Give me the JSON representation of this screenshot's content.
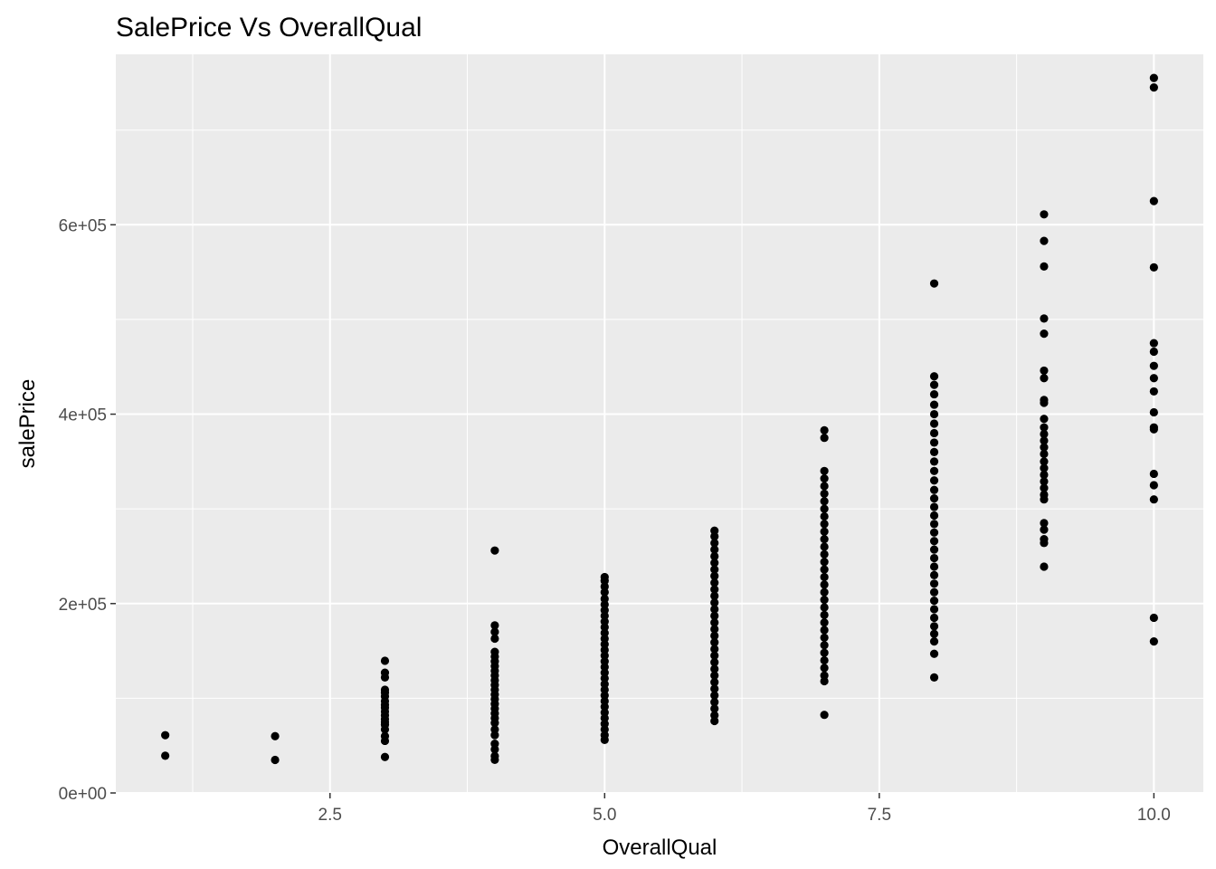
{
  "chart_data": {
    "type": "scatter",
    "title": "SalePrice Vs OverallQual",
    "xlabel": "OverallQual",
    "ylabel": "salePrice",
    "xlim": [
      0.55,
      10.45
    ],
    "ylim": [
      0,
      780000
    ],
    "x_ticks": [
      {
        "value": 2.5,
        "label": "2.5"
      },
      {
        "value": 5.0,
        "label": "5.0"
      },
      {
        "value": 7.5,
        "label": "7.5"
      },
      {
        "value": 10.0,
        "label": "10.0"
      }
    ],
    "y_ticks": [
      {
        "value": 0,
        "label": "0e+00"
      },
      {
        "value": 200000,
        "label": "2e+05"
      },
      {
        "value": 400000,
        "label": "4e+05"
      },
      {
        "value": 600000,
        "label": "6e+05"
      }
    ],
    "x_minor_breaks": [
      1.25,
      3.75,
      6.25,
      8.75
    ],
    "y_minor_breaks": [
      100000,
      300000,
      500000,
      700000
    ],
    "grid": true,
    "background": "#ebebeb",
    "gridline_color": "#ffffff",
    "point_color": "#000000",
    "points": [
      {
        "x": 1,
        "y": 61000
      },
      {
        "x": 1,
        "y": 39300
      },
      {
        "x": 2,
        "y": 60000
      },
      {
        "x": 2,
        "y": 34900
      },
      {
        "x": 3,
        "y": 139600
      },
      {
        "x": 3,
        "y": 127000
      },
      {
        "x": 3,
        "y": 122000
      },
      {
        "x": 3,
        "y": 109000
      },
      {
        "x": 3,
        "y": 106000
      },
      {
        "x": 3,
        "y": 102000
      },
      {
        "x": 3,
        "y": 97000
      },
      {
        "x": 3,
        "y": 93000
      },
      {
        "x": 3,
        "y": 90000
      },
      {
        "x": 3,
        "y": 86000
      },
      {
        "x": 3,
        "y": 82000
      },
      {
        "x": 3,
        "y": 78000
      },
      {
        "x": 3,
        "y": 75000
      },
      {
        "x": 3,
        "y": 72000
      },
      {
        "x": 3,
        "y": 67000
      },
      {
        "x": 3,
        "y": 60000
      },
      {
        "x": 3,
        "y": 55000
      },
      {
        "x": 3,
        "y": 38000
      },
      {
        "x": 4,
        "y": 256000
      },
      {
        "x": 4,
        "y": 177000
      },
      {
        "x": 4,
        "y": 170000
      },
      {
        "x": 4,
        "y": 163000
      },
      {
        "x": 4,
        "y": 149000
      },
      {
        "x": 4,
        "y": 144000
      },
      {
        "x": 4,
        "y": 139000
      },
      {
        "x": 4,
        "y": 134000
      },
      {
        "x": 4,
        "y": 129000
      },
      {
        "x": 4,
        "y": 124000
      },
      {
        "x": 4,
        "y": 119000
      },
      {
        "x": 4,
        "y": 114000
      },
      {
        "x": 4,
        "y": 109000
      },
      {
        "x": 4,
        "y": 104000
      },
      {
        "x": 4,
        "y": 99000
      },
      {
        "x": 4,
        "y": 94000
      },
      {
        "x": 4,
        "y": 89000
      },
      {
        "x": 4,
        "y": 84000
      },
      {
        "x": 4,
        "y": 79000
      },
      {
        "x": 4,
        "y": 74000
      },
      {
        "x": 4,
        "y": 67000
      },
      {
        "x": 4,
        "y": 61000
      },
      {
        "x": 4,
        "y": 52000
      },
      {
        "x": 4,
        "y": 46000
      },
      {
        "x": 4,
        "y": 39000
      },
      {
        "x": 4,
        "y": 35000
      },
      {
        "x": 5,
        "y": 228000
      },
      {
        "x": 5,
        "y": 224000
      },
      {
        "x": 5,
        "y": 218000
      },
      {
        "x": 5,
        "y": 212000
      },
      {
        "x": 5,
        "y": 205000
      },
      {
        "x": 5,
        "y": 199000
      },
      {
        "x": 5,
        "y": 193000
      },
      {
        "x": 5,
        "y": 187000
      },
      {
        "x": 5,
        "y": 181000
      },
      {
        "x": 5,
        "y": 175000
      },
      {
        "x": 5,
        "y": 169000
      },
      {
        "x": 5,
        "y": 163000
      },
      {
        "x": 5,
        "y": 157000
      },
      {
        "x": 5,
        "y": 151000
      },
      {
        "x": 5,
        "y": 145000
      },
      {
        "x": 5,
        "y": 139000
      },
      {
        "x": 5,
        "y": 133000
      },
      {
        "x": 5,
        "y": 127000
      },
      {
        "x": 5,
        "y": 121000
      },
      {
        "x": 5,
        "y": 115000
      },
      {
        "x": 5,
        "y": 109000
      },
      {
        "x": 5,
        "y": 103000
      },
      {
        "x": 5,
        "y": 97000
      },
      {
        "x": 5,
        "y": 91000
      },
      {
        "x": 5,
        "y": 85000
      },
      {
        "x": 5,
        "y": 79000
      },
      {
        "x": 5,
        "y": 73000
      },
      {
        "x": 5,
        "y": 67000
      },
      {
        "x": 5,
        "y": 61000
      },
      {
        "x": 5,
        "y": 56000
      },
      {
        "x": 6,
        "y": 277000
      },
      {
        "x": 6,
        "y": 271000
      },
      {
        "x": 6,
        "y": 264000
      },
      {
        "x": 6,
        "y": 257000
      },
      {
        "x": 6,
        "y": 250000
      },
      {
        "x": 6,
        "y": 243000
      },
      {
        "x": 6,
        "y": 236000
      },
      {
        "x": 6,
        "y": 229000
      },
      {
        "x": 6,
        "y": 222000
      },
      {
        "x": 6,
        "y": 215000
      },
      {
        "x": 6,
        "y": 208000
      },
      {
        "x": 6,
        "y": 201000
      },
      {
        "x": 6,
        "y": 194000
      },
      {
        "x": 6,
        "y": 187000
      },
      {
        "x": 6,
        "y": 180000
      },
      {
        "x": 6,
        "y": 173000
      },
      {
        "x": 6,
        "y": 166000
      },
      {
        "x": 6,
        "y": 159000
      },
      {
        "x": 6,
        "y": 152000
      },
      {
        "x": 6,
        "y": 145000
      },
      {
        "x": 6,
        "y": 138000
      },
      {
        "x": 6,
        "y": 131000
      },
      {
        "x": 6,
        "y": 124000
      },
      {
        "x": 6,
        "y": 117000
      },
      {
        "x": 6,
        "y": 110000
      },
      {
        "x": 6,
        "y": 103000
      },
      {
        "x": 6,
        "y": 96000
      },
      {
        "x": 6,
        "y": 89000
      },
      {
        "x": 6,
        "y": 82000
      },
      {
        "x": 6,
        "y": 76000
      },
      {
        "x": 7,
        "y": 383000
      },
      {
        "x": 7,
        "y": 375000
      },
      {
        "x": 7,
        "y": 340000
      },
      {
        "x": 7,
        "y": 332000
      },
      {
        "x": 7,
        "y": 324000
      },
      {
        "x": 7,
        "y": 316000
      },
      {
        "x": 7,
        "y": 308000
      },
      {
        "x": 7,
        "y": 300000
      },
      {
        "x": 7,
        "y": 292000
      },
      {
        "x": 7,
        "y": 284000
      },
      {
        "x": 7,
        "y": 276000
      },
      {
        "x": 7,
        "y": 268000
      },
      {
        "x": 7,
        "y": 260000
      },
      {
        "x": 7,
        "y": 252000
      },
      {
        "x": 7,
        "y": 244000
      },
      {
        "x": 7,
        "y": 236000
      },
      {
        "x": 7,
        "y": 228000
      },
      {
        "x": 7,
        "y": 220000
      },
      {
        "x": 7,
        "y": 212000
      },
      {
        "x": 7,
        "y": 204000
      },
      {
        "x": 7,
        "y": 196000
      },
      {
        "x": 7,
        "y": 188000
      },
      {
        "x": 7,
        "y": 180000
      },
      {
        "x": 7,
        "y": 172000
      },
      {
        "x": 7,
        "y": 164000
      },
      {
        "x": 7,
        "y": 156000
      },
      {
        "x": 7,
        "y": 148000
      },
      {
        "x": 7,
        "y": 140000
      },
      {
        "x": 7,
        "y": 132000
      },
      {
        "x": 7,
        "y": 124000
      },
      {
        "x": 7,
        "y": 118000
      },
      {
        "x": 7,
        "y": 82500
      },
      {
        "x": 8,
        "y": 538000
      },
      {
        "x": 8,
        "y": 440000
      },
      {
        "x": 8,
        "y": 431000
      },
      {
        "x": 8,
        "y": 421000
      },
      {
        "x": 8,
        "y": 410000
      },
      {
        "x": 8,
        "y": 400000
      },
      {
        "x": 8,
        "y": 390000
      },
      {
        "x": 8,
        "y": 380000
      },
      {
        "x": 8,
        "y": 370000
      },
      {
        "x": 8,
        "y": 360000
      },
      {
        "x": 8,
        "y": 350000
      },
      {
        "x": 8,
        "y": 340000
      },
      {
        "x": 8,
        "y": 330000
      },
      {
        "x": 8,
        "y": 320000
      },
      {
        "x": 8,
        "y": 311000
      },
      {
        "x": 8,
        "y": 302000
      },
      {
        "x": 8,
        "y": 293000
      },
      {
        "x": 8,
        "y": 284000
      },
      {
        "x": 8,
        "y": 275000
      },
      {
        "x": 8,
        "y": 266000
      },
      {
        "x": 8,
        "y": 257000
      },
      {
        "x": 8,
        "y": 248000
      },
      {
        "x": 8,
        "y": 239000
      },
      {
        "x": 8,
        "y": 230000
      },
      {
        "x": 8,
        "y": 221000
      },
      {
        "x": 8,
        "y": 212000
      },
      {
        "x": 8,
        "y": 203000
      },
      {
        "x": 8,
        "y": 194000
      },
      {
        "x": 8,
        "y": 185000
      },
      {
        "x": 8,
        "y": 176000
      },
      {
        "x": 8,
        "y": 168000
      },
      {
        "x": 8,
        "y": 160000
      },
      {
        "x": 8,
        "y": 147000
      },
      {
        "x": 8,
        "y": 122000
      },
      {
        "x": 9,
        "y": 611000
      },
      {
        "x": 9,
        "y": 583000
      },
      {
        "x": 9,
        "y": 556000
      },
      {
        "x": 9,
        "y": 501000
      },
      {
        "x": 9,
        "y": 485000
      },
      {
        "x": 9,
        "y": 446000
      },
      {
        "x": 9,
        "y": 438000
      },
      {
        "x": 9,
        "y": 415000
      },
      {
        "x": 9,
        "y": 412000
      },
      {
        "x": 9,
        "y": 395000
      },
      {
        "x": 9,
        "y": 386000
      },
      {
        "x": 9,
        "y": 379000
      },
      {
        "x": 9,
        "y": 372000
      },
      {
        "x": 9,
        "y": 365000
      },
      {
        "x": 9,
        "y": 358000
      },
      {
        "x": 9,
        "y": 350000
      },
      {
        "x": 9,
        "y": 343000
      },
      {
        "x": 9,
        "y": 336000
      },
      {
        "x": 9,
        "y": 329000
      },
      {
        "x": 9,
        "y": 322000
      },
      {
        "x": 9,
        "y": 315000
      },
      {
        "x": 9,
        "y": 310000
      },
      {
        "x": 9,
        "y": 285000
      },
      {
        "x": 9,
        "y": 278000
      },
      {
        "x": 9,
        "y": 268000
      },
      {
        "x": 9,
        "y": 264000
      },
      {
        "x": 9,
        "y": 239000
      },
      {
        "x": 10,
        "y": 755000
      },
      {
        "x": 10,
        "y": 745000
      },
      {
        "x": 10,
        "y": 625000
      },
      {
        "x": 10,
        "y": 555000
      },
      {
        "x": 10,
        "y": 475000
      },
      {
        "x": 10,
        "y": 466000
      },
      {
        "x": 10,
        "y": 451000
      },
      {
        "x": 10,
        "y": 438000
      },
      {
        "x": 10,
        "y": 424000
      },
      {
        "x": 10,
        "y": 402000
      },
      {
        "x": 10,
        "y": 386000
      },
      {
        "x": 10,
        "y": 384000
      },
      {
        "x": 10,
        "y": 337000
      },
      {
        "x": 10,
        "y": 325000
      },
      {
        "x": 10,
        "y": 310000
      },
      {
        "x": 10,
        "y": 185000
      },
      {
        "x": 10,
        "y": 160000
      }
    ]
  }
}
